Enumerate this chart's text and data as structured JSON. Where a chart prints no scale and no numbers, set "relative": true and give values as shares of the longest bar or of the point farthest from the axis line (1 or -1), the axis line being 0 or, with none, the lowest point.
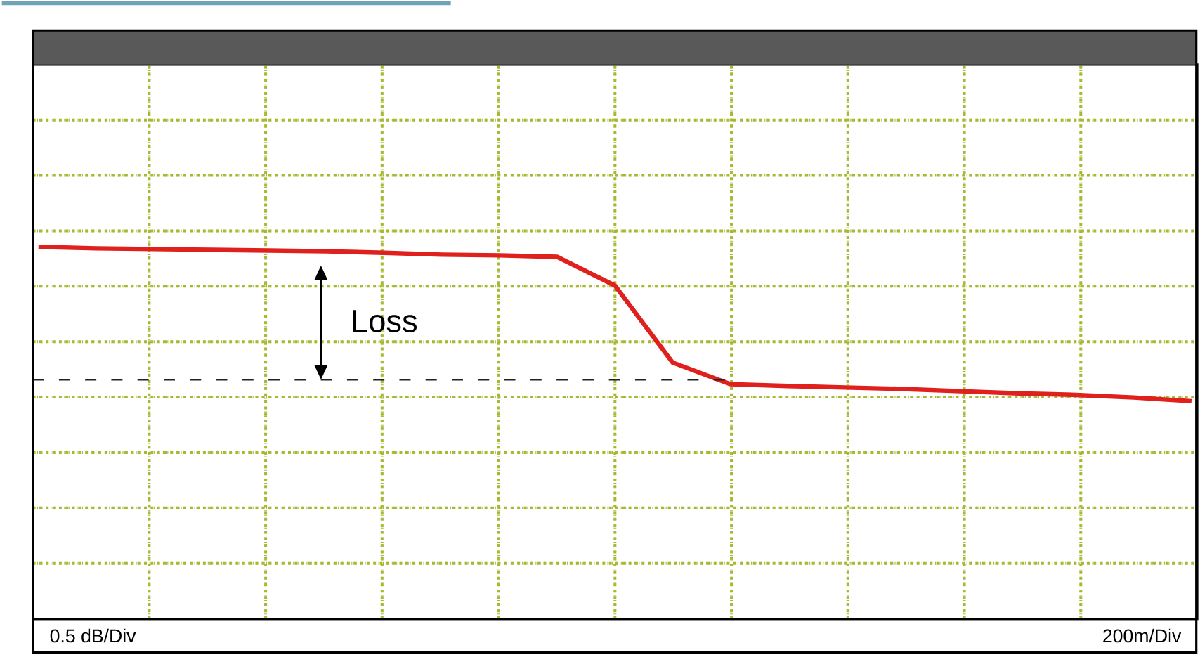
{
  "chart_data": {
    "type": "line",
    "relative": true,
    "grid": true,
    "marker": "none",
    "line_style": "solid",
    "categories": [
      null,
      null,
      null,
      null,
      null,
      null,
      null,
      null,
      null,
      null,
      null,
      null,
      null,
      null,
      null,
      null,
      null,
      null,
      null,
      null,
      null
    ],
    "series": [
      {
        "color": "#e0201c",
        "values": [
          1.0,
          0.996,
          0.994,
          0.992,
          0.99,
          0.988,
          0.984,
          0.979,
          0.977,
          0.973,
          0.896,
          0.689,
          0.631,
          0.626,
          0.622,
          0.618,
          0.612,
          0.606,
          0.602,
          0.595,
          0.585
        ]
      }
    ],
    "ref_lines": [
      {
        "axis": "y",
        "value": 0.643,
        "color": "#222222",
        "line_style": "dashed"
      }
    ],
    "annotations": [
      "Loss",
      "0.5 dB/Div",
      "200m/Div"
    ]
  }
}
